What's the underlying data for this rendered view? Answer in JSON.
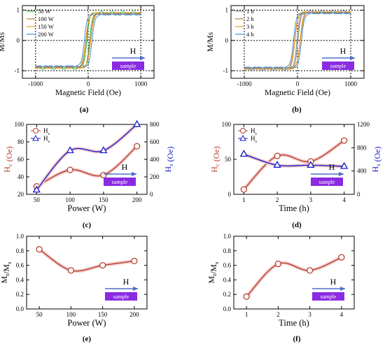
{
  "colors": {
    "hc": "#b5402c",
    "hs": "#1a1ec8",
    "mr": "#b5402c",
    "glow": "#f4cccc",
    "badge_bg": "#8a2be2",
    "arrow": "#4e6fc9"
  },
  "panels": {
    "a": {
      "label": "(a)",
      "arrow_text": "H",
      "badge": "sample"
    },
    "b": {
      "label": "(b)",
      "arrow_text": "H",
      "badge": "sample"
    },
    "c": {
      "label": "(c)",
      "arrow_text": "H",
      "badge": "sample"
    },
    "d": {
      "label": "(d)",
      "arrow_text": "H",
      "badge": "sample"
    },
    "e": {
      "label": "(e)",
      "arrow_text": "H",
      "badge": "sample"
    },
    "f": {
      "label": "(f)",
      "arrow_text": "H",
      "badge": "sample"
    }
  },
  "chart_data": [
    {
      "id": "a",
      "type": "line",
      "xlabel": "Magnetic Field (Oe)",
      "ylabel": "M/Ms",
      "xlim": [
        -1250,
        1250
      ],
      "ylim": [
        -1.25,
        1.15
      ],
      "xticks": [
        -1000,
        0,
        1000
      ],
      "yticks": [
        -1,
        0,
        1
      ],
      "legend_position": "top-left",
      "series": [
        {
          "name": "50 W",
          "color": "#2ca02c",
          "hc": 28,
          "sat": 0.92
        },
        {
          "name": "100 W",
          "color": "#c8782a",
          "hc": 48,
          "sat": 0.88
        },
        {
          "name": "150 W",
          "color": "#e8a020",
          "hc": 42,
          "sat": 0.9
        },
        {
          "name": "200 W",
          "color": "#4a90d0",
          "hc": 75,
          "sat": 0.86
        }
      ]
    },
    {
      "id": "b",
      "type": "line",
      "xlabel": "Magnetic Field (Oe)",
      "ylabel": "M/Ms",
      "xlim": [
        -1250,
        1250
      ],
      "ylim": [
        -1.25,
        1.15
      ],
      "xticks": [
        -1000,
        0,
        1000
      ],
      "yticks": [
        -1,
        0,
        1
      ],
      "legend_position": "top-left",
      "series": [
        {
          "name": "1 h",
          "color": "#888888",
          "hc": 10,
          "sat": 0.95
        },
        {
          "name": "2 h",
          "color": "#c8782a",
          "hc": 55,
          "sat": 0.92
        },
        {
          "name": "3 h",
          "color": "#e8a020",
          "hc": 47,
          "sat": 0.93
        },
        {
          "name": "4 h",
          "color": "#4a90d0",
          "hc": 76,
          "sat": 0.9
        }
      ]
    },
    {
      "id": "c",
      "type": "line",
      "xlabel": "Power (W)",
      "ylabel": "Hc (Oe)",
      "ylabel_right": "Hs (Oe)",
      "xlim": [
        35,
        215
      ],
      "ylim": [
        20,
        100
      ],
      "ylim_right": [
        0,
        800
      ],
      "xticks": [
        50,
        100,
        150,
        200
      ],
      "yticks": [
        20,
        40,
        60,
        80,
        100
      ],
      "yticks_right": [
        0,
        200,
        400,
        600,
        800
      ],
      "legend_position": "top-left",
      "series": [
        {
          "name": "Hc",
          "axis": "left",
          "marker": "circle",
          "x": [
            50,
            100,
            150,
            200
          ],
          "y": [
            29,
            48,
            42,
            75
          ]
        },
        {
          "name": "Hs",
          "axis": "right",
          "marker": "triangle",
          "x": [
            50,
            100,
            150,
            200
          ],
          "y": [
            50,
            500,
            500,
            800
          ]
        }
      ]
    },
    {
      "id": "d",
      "type": "line",
      "xlabel": "Time (h)",
      "ylabel": "Hc (Oe)",
      "ylabel_right": "Hs (Oe)",
      "xlim": [
        0.7,
        4.3
      ],
      "ylim": [
        0,
        100
      ],
      "ylim_right": [
        0,
        1200
      ],
      "xticks": [
        1,
        2,
        3,
        4
      ],
      "yticks": [
        0,
        50,
        100
      ],
      "yticks_right": [
        0,
        400,
        800,
        1200
      ],
      "legend_position": "top-left",
      "series": [
        {
          "name": "Hc",
          "axis": "left",
          "marker": "circle",
          "x": [
            1,
            2,
            3,
            4
          ],
          "y": [
            7,
            55,
            47,
            77
          ]
        },
        {
          "name": "Hs",
          "axis": "right",
          "marker": "triangle",
          "x": [
            1,
            2,
            3,
            4
          ],
          "y": [
            690,
            500,
            500,
            480
          ]
        }
      ]
    },
    {
      "id": "e",
      "type": "line",
      "xlabel": "Power (W)",
      "ylabel": "Mr/Ms",
      "xlim": [
        30,
        220
      ],
      "ylim": [
        0.0,
        1.0
      ],
      "xticks": [
        50,
        100,
        150,
        200
      ],
      "yticks": [
        0.0,
        0.2,
        0.4,
        0.6,
        0.8,
        1.0
      ],
      "series": [
        {
          "name": "Mr/Ms",
          "marker": "circle",
          "x": [
            50,
            100,
            150,
            200
          ],
          "y": [
            0.82,
            0.53,
            0.6,
            0.66
          ]
        }
      ]
    },
    {
      "id": "f",
      "type": "line",
      "xlabel": "Time (h)",
      "ylabel": "Mr/Ms",
      "xlim": [
        0.6,
        4.4
      ],
      "ylim": [
        0.0,
        1.0
      ],
      "xticks": [
        1,
        2,
        3,
        4
      ],
      "yticks": [
        0.0,
        0.2,
        0.4,
        0.6,
        0.8,
        1.0
      ],
      "series": [
        {
          "name": "Mr/Ms",
          "marker": "circle",
          "x": [
            1,
            2,
            3,
            4
          ],
          "y": [
            0.17,
            0.62,
            0.53,
            0.71
          ]
        }
      ]
    }
  ]
}
